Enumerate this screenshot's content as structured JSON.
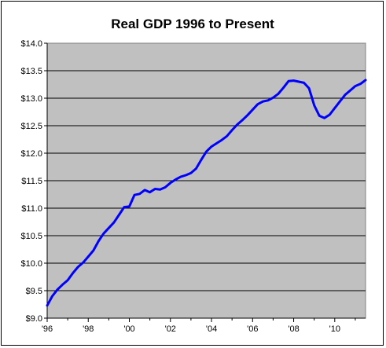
{
  "chart_data": {
    "type": "line",
    "title": "Real GDP 1996 to Present",
    "xlabel": "",
    "ylabel": "",
    "xlim": [
      1996,
      2011.5
    ],
    "ylim": [
      9.0,
      14.0
    ],
    "y_ticks": [
      9.0,
      9.5,
      10.0,
      10.5,
      11.0,
      11.5,
      12.0,
      12.5,
      13.0,
      13.5,
      14.0
    ],
    "y_tick_labels": [
      "$9.0",
      "$9.5",
      "$10.0",
      "$10.5",
      "$11.0",
      "$11.5",
      "$12.0",
      "$12.5",
      "$13.0",
      "$13.5",
      "$14.0"
    ],
    "x_ticks": [
      1996,
      1998,
      2000,
      2002,
      2004,
      2006,
      2008,
      2010
    ],
    "x_tick_labels": [
      "'96",
      "'98",
      "'00",
      "'02",
      "'04",
      "'06",
      "'08",
      "'10"
    ],
    "grid": "horizontal",
    "plot_background": "#c0c0c0",
    "line_color": "#0000ff",
    "series": [
      {
        "name": "",
        "x": [
          1996.0,
          1996.25,
          1996.5,
          1996.75,
          1997.0,
          1997.25,
          1997.5,
          1997.75,
          1998.0,
          1998.25,
          1998.5,
          1998.75,
          1999.0,
          1999.25,
          1999.5,
          1999.75,
          2000.0,
          2000.25,
          2000.5,
          2000.75,
          2001.0,
          2001.25,
          2001.5,
          2001.75,
          2002.0,
          2002.25,
          2002.5,
          2002.75,
          2003.0,
          2003.25,
          2003.5,
          2003.75,
          2004.0,
          2004.25,
          2004.5,
          2004.75,
          2005.0,
          2005.25,
          2005.5,
          2005.75,
          2006.0,
          2006.25,
          2006.5,
          2006.75,
          2007.0,
          2007.25,
          2007.5,
          2007.75,
          2008.0,
          2008.25,
          2008.5,
          2008.75,
          2009.0,
          2009.25,
          2009.5,
          2009.75,
          2010.0,
          2010.25,
          2010.5,
          2010.75,
          2011.0,
          2011.25,
          2011.5
        ],
        "values": [
          9.23,
          9.4,
          9.52,
          9.61,
          9.69,
          9.82,
          9.93,
          10.01,
          10.12,
          10.23,
          10.4,
          10.54,
          10.64,
          10.74,
          10.88,
          11.02,
          11.03,
          11.24,
          11.26,
          11.33,
          11.29,
          11.35,
          11.34,
          11.38,
          11.46,
          11.52,
          11.57,
          11.6,
          11.64,
          11.72,
          11.88,
          12.03,
          12.12,
          12.18,
          12.24,
          12.31,
          12.42,
          12.52,
          12.6,
          12.69,
          12.79,
          12.89,
          12.94,
          12.96,
          13.01,
          13.08,
          13.19,
          13.31,
          13.32,
          13.3,
          13.28,
          13.18,
          12.87,
          12.68,
          12.64,
          12.7,
          12.82,
          12.94,
          13.06,
          13.14,
          13.22,
          13.26,
          13.33
        ]
      }
    ]
  }
}
